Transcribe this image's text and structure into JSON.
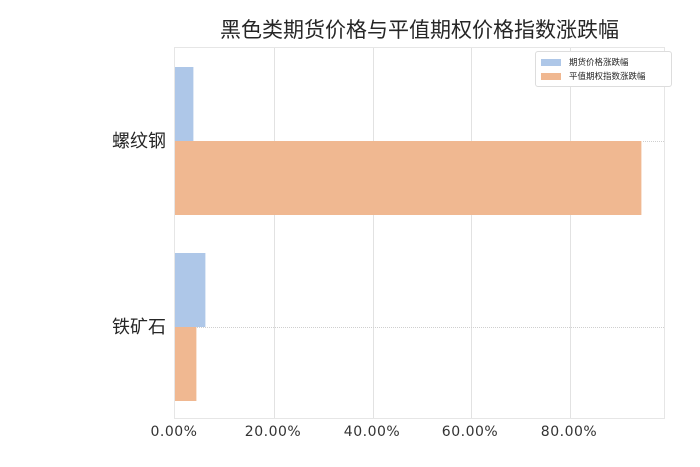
{
  "chart_data": {
    "type": "bar",
    "orientation": "horizontal",
    "title": "黑色类期货价格与平值期权价格指数涨跌幅",
    "categories": [
      "螺纹钢",
      "铁矿石"
    ],
    "series": [
      {
        "name": "期货价格涨跌幅",
        "color": "#aec7e8",
        "values": [
          3.8,
          6.3
        ]
      },
      {
        "name": "平值期权指数涨跌幅",
        "color": "#f0b891",
        "values": [
          94.5,
          4.4
        ]
      }
    ],
    "xlabel": "",
    "ylabel": "",
    "xlim": [
      0,
      99.5
    ],
    "xticks": [
      "0.00%",
      "20.00%",
      "40.00%",
      "60.00%",
      "80.00%"
    ],
    "grid": true,
    "legend_position": "upper right"
  },
  "title": "黑色类期货价格与平值期权价格指数涨跌幅",
  "legend": {
    "items": [
      {
        "label": "期货价格涨跌幅",
        "color": "#aec7e8"
      },
      {
        "label": "平值期权指数涨跌幅",
        "color": "#f0b891"
      }
    ]
  },
  "axis": {
    "x_ticks": [
      "0.00%",
      "20.00%",
      "40.00%",
      "60.00%",
      "80.00%"
    ],
    "y_ticks": [
      "螺纹钢",
      "铁矿石"
    ]
  }
}
